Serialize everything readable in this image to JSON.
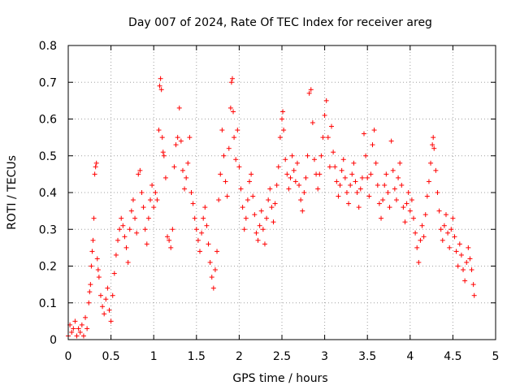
{
  "chart_data": {
    "type": "scatter",
    "title": "Day 007 of 2024, Rate Of TEC Index for receiver areg",
    "xlabel": "GPS time / hours",
    "ylabel": "ROTI / TECUs",
    "xlim": [
      0,
      5
    ],
    "ylim": [
      0,
      0.8
    ],
    "x_ticks": [
      "0",
      "0.5",
      "1",
      "1.5",
      "2",
      "2.5",
      "3",
      "3.5",
      "4",
      "4.5",
      "5"
    ],
    "y_ticks": [
      "0",
      "0.1",
      "0.2",
      "0.3",
      "0.4",
      "0.5",
      "0.6",
      "0.7",
      "0.8"
    ],
    "grid": true,
    "marker": "+",
    "color": "#ff0000",
    "data_x_range": [
      0,
      4.75
    ],
    "series": [
      {
        "points": [
          [
            0.0,
            0.01
          ],
          [
            0.02,
            0.04
          ],
          [
            0.04,
            0.02
          ],
          [
            0.06,
            0.03
          ],
          [
            0.08,
            0.05
          ],
          [
            0.1,
            0.01
          ],
          [
            0.12,
            0.03
          ],
          [
            0.14,
            0.02
          ],
          [
            0.16,
            0.04
          ],
          [
            0.18,
            0.01
          ],
          [
            0.2,
            0.06
          ],
          [
            0.22,
            0.03
          ],
          [
            0.24,
            0.1
          ],
          [
            0.25,
            0.13
          ],
          [
            0.26,
            0.15
          ],
          [
            0.27,
            0.2
          ],
          [
            0.28,
            0.24
          ],
          [
            0.29,
            0.27
          ],
          [
            0.3,
            0.33
          ],
          [
            0.31,
            0.45
          ],
          [
            0.32,
            0.47
          ],
          [
            0.33,
            0.48
          ],
          [
            0.34,
            0.22
          ],
          [
            0.35,
            0.19
          ],
          [
            0.36,
            0.17
          ],
          [
            0.38,
            0.12
          ],
          [
            0.4,
            0.09
          ],
          [
            0.42,
            0.07
          ],
          [
            0.44,
            0.11
          ],
          [
            0.46,
            0.14
          ],
          [
            0.48,
            0.08
          ],
          [
            0.5,
            0.05
          ],
          [
            0.52,
            0.12
          ],
          [
            0.54,
            0.18
          ],
          [
            0.56,
            0.23
          ],
          [
            0.58,
            0.27
          ],
          [
            0.6,
            0.3
          ],
          [
            0.62,
            0.33
          ],
          [
            0.64,
            0.31
          ],
          [
            0.66,
            0.28
          ],
          [
            0.68,
            0.25
          ],
          [
            0.7,
            0.21
          ],
          [
            0.72,
            0.3
          ],
          [
            0.74,
            0.35
          ],
          [
            0.76,
            0.38
          ],
          [
            0.78,
            0.33
          ],
          [
            0.8,
            0.29
          ],
          [
            0.82,
            0.45
          ],
          [
            0.84,
            0.46
          ],
          [
            0.86,
            0.4
          ],
          [
            0.88,
            0.36
          ],
          [
            0.9,
            0.3
          ],
          [
            0.92,
            0.26
          ],
          [
            0.94,
            0.33
          ],
          [
            0.96,
            0.38
          ],
          [
            0.98,
            0.42
          ],
          [
            1.0,
            0.36
          ],
          [
            1.02,
            0.4
          ],
          [
            1.04,
            0.38
          ],
          [
            1.06,
            0.57
          ],
          [
            1.07,
            0.69
          ],
          [
            1.08,
            0.71
          ],
          [
            1.09,
            0.68
          ],
          [
            1.1,
            0.55
          ],
          [
            1.11,
            0.51
          ],
          [
            1.12,
            0.5
          ],
          [
            1.14,
            0.44
          ],
          [
            1.16,
            0.28
          ],
          [
            1.18,
            0.27
          ],
          [
            1.2,
            0.25
          ],
          [
            1.22,
            0.3
          ],
          [
            1.24,
            0.47
          ],
          [
            1.26,
            0.53
          ],
          [
            1.28,
            0.55
          ],
          [
            1.3,
            0.63
          ],
          [
            1.32,
            0.54
          ],
          [
            1.34,
            0.46
          ],
          [
            1.36,
            0.41
          ],
          [
            1.38,
            0.44
          ],
          [
            1.4,
            0.48
          ],
          [
            1.42,
            0.55
          ],
          [
            1.44,
            0.4
          ],
          [
            1.46,
            0.37
          ],
          [
            1.48,
            0.33
          ],
          [
            1.5,
            0.3
          ],
          [
            1.52,
            0.27
          ],
          [
            1.54,
            0.24
          ],
          [
            1.56,
            0.29
          ],
          [
            1.58,
            0.33
          ],
          [
            1.6,
            0.36
          ],
          [
            1.62,
            0.31
          ],
          [
            1.64,
            0.26
          ],
          [
            1.66,
            0.21
          ],
          [
            1.68,
            0.17
          ],
          [
            1.7,
            0.14
          ],
          [
            1.72,
            0.19
          ],
          [
            1.74,
            0.24
          ],
          [
            1.76,
            0.38
          ],
          [
            1.78,
            0.45
          ],
          [
            1.8,
            0.57
          ],
          [
            1.82,
            0.5
          ],
          [
            1.84,
            0.43
          ],
          [
            1.86,
            0.39
          ],
          [
            1.88,
            0.52
          ],
          [
            1.9,
            0.63
          ],
          [
            1.91,
            0.7
          ],
          [
            1.92,
            0.71
          ],
          [
            1.93,
            0.62
          ],
          [
            1.94,
            0.55
          ],
          [
            1.96,
            0.49
          ],
          [
            1.98,
            0.57
          ],
          [
            2.0,
            0.47
          ],
          [
            2.02,
            0.41
          ],
          [
            2.04,
            0.36
          ],
          [
            2.06,
            0.3
          ],
          [
            2.08,
            0.33
          ],
          [
            2.1,
            0.38
          ],
          [
            2.12,
            0.43
          ],
          [
            2.14,
            0.45
          ],
          [
            2.16,
            0.39
          ],
          [
            2.18,
            0.34
          ],
          [
            2.2,
            0.29
          ],
          [
            2.22,
            0.27
          ],
          [
            2.24,
            0.31
          ],
          [
            2.26,
            0.35
          ],
          [
            2.28,
            0.3
          ],
          [
            2.3,
            0.26
          ],
          [
            2.32,
            0.33
          ],
          [
            2.34,
            0.38
          ],
          [
            2.36,
            0.41
          ],
          [
            2.38,
            0.36
          ],
          [
            2.4,
            0.32
          ],
          [
            2.42,
            0.37
          ],
          [
            2.44,
            0.42
          ],
          [
            2.46,
            0.47
          ],
          [
            2.48,
            0.55
          ],
          [
            2.5,
            0.6
          ],
          [
            2.51,
            0.62
          ],
          [
            2.52,
            0.57
          ],
          [
            2.54,
            0.49
          ],
          [
            2.56,
            0.45
          ],
          [
            2.58,
            0.41
          ],
          [
            2.6,
            0.44
          ],
          [
            2.62,
            0.5
          ],
          [
            2.64,
            0.46
          ],
          [
            2.66,
            0.43
          ],
          [
            2.68,
            0.48
          ],
          [
            2.7,
            0.42
          ],
          [
            2.72,
            0.38
          ],
          [
            2.74,
            0.35
          ],
          [
            2.76,
            0.4
          ],
          [
            2.78,
            0.44
          ],
          [
            2.8,
            0.5
          ],
          [
            2.82,
            0.67
          ],
          [
            2.84,
            0.68
          ],
          [
            2.86,
            0.59
          ],
          [
            2.88,
            0.49
          ],
          [
            2.9,
            0.45
          ],
          [
            2.92,
            0.41
          ],
          [
            2.94,
            0.45
          ],
          [
            2.96,
            0.5
          ],
          [
            2.98,
            0.55
          ],
          [
            3.0,
            0.61
          ],
          [
            3.02,
            0.65
          ],
          [
            3.04,
            0.55
          ],
          [
            3.06,
            0.47
          ],
          [
            3.08,
            0.58
          ],
          [
            3.1,
            0.51
          ],
          [
            3.12,
            0.47
          ],
          [
            3.14,
            0.43
          ],
          [
            3.16,
            0.39
          ],
          [
            3.18,
            0.42
          ],
          [
            3.2,
            0.46
          ],
          [
            3.22,
            0.49
          ],
          [
            3.24,
            0.44
          ],
          [
            3.26,
            0.4
          ],
          [
            3.28,
            0.37
          ],
          [
            3.3,
            0.42
          ],
          [
            3.32,
            0.45
          ],
          [
            3.34,
            0.48
          ],
          [
            3.36,
            0.43
          ],
          [
            3.38,
            0.4
          ],
          [
            3.4,
            0.36
          ],
          [
            3.42,
            0.41
          ],
          [
            3.44,
            0.44
          ],
          [
            3.46,
            0.56
          ],
          [
            3.48,
            0.5
          ],
          [
            3.5,
            0.44
          ],
          [
            3.52,
            0.39
          ],
          [
            3.54,
            0.45
          ],
          [
            3.56,
            0.53
          ],
          [
            3.58,
            0.57
          ],
          [
            3.6,
            0.48
          ],
          [
            3.62,
            0.42
          ],
          [
            3.64,
            0.37
          ],
          [
            3.66,
            0.33
          ],
          [
            3.68,
            0.38
          ],
          [
            3.7,
            0.42
          ],
          [
            3.72,
            0.45
          ],
          [
            3.74,
            0.4
          ],
          [
            3.76,
            0.36
          ],
          [
            3.78,
            0.54
          ],
          [
            3.8,
            0.46
          ],
          [
            3.82,
            0.41
          ],
          [
            3.84,
            0.38
          ],
          [
            3.86,
            0.44
          ],
          [
            3.88,
            0.48
          ],
          [
            3.9,
            0.42
          ],
          [
            3.92,
            0.36
          ],
          [
            3.94,
            0.32
          ],
          [
            3.96,
            0.37
          ],
          [
            3.98,
            0.4
          ],
          [
            4.0,
            0.35
          ],
          [
            4.02,
            0.38
          ],
          [
            4.04,
            0.33
          ],
          [
            4.06,
            0.29
          ],
          [
            4.08,
            0.25
          ],
          [
            4.1,
            0.21
          ],
          [
            4.12,
            0.27
          ],
          [
            4.14,
            0.31
          ],
          [
            4.16,
            0.28
          ],
          [
            4.18,
            0.34
          ],
          [
            4.2,
            0.39
          ],
          [
            4.22,
            0.43
          ],
          [
            4.24,
            0.48
          ],
          [
            4.26,
            0.53
          ],
          [
            4.27,
            0.55
          ],
          [
            4.28,
            0.52
          ],
          [
            4.3,
            0.46
          ],
          [
            4.32,
            0.4
          ],
          [
            4.34,
            0.35
          ],
          [
            4.36,
            0.3
          ],
          [
            4.38,
            0.27
          ],
          [
            4.4,
            0.31
          ],
          [
            4.42,
            0.34
          ],
          [
            4.44,
            0.29
          ],
          [
            4.46,
            0.25
          ],
          [
            4.48,
            0.3
          ],
          [
            4.5,
            0.33
          ],
          [
            4.52,
            0.28
          ],
          [
            4.54,
            0.24
          ],
          [
            4.56,
            0.2
          ],
          [
            4.58,
            0.26
          ],
          [
            4.6,
            0.23
          ],
          [
            4.62,
            0.19
          ],
          [
            4.64,
            0.16
          ],
          [
            4.66,
            0.21
          ],
          [
            4.68,
            0.25
          ],
          [
            4.7,
            0.22
          ],
          [
            4.72,
            0.19
          ],
          [
            4.74,
            0.15
          ],
          [
            4.75,
            0.12
          ]
        ]
      }
    ]
  }
}
